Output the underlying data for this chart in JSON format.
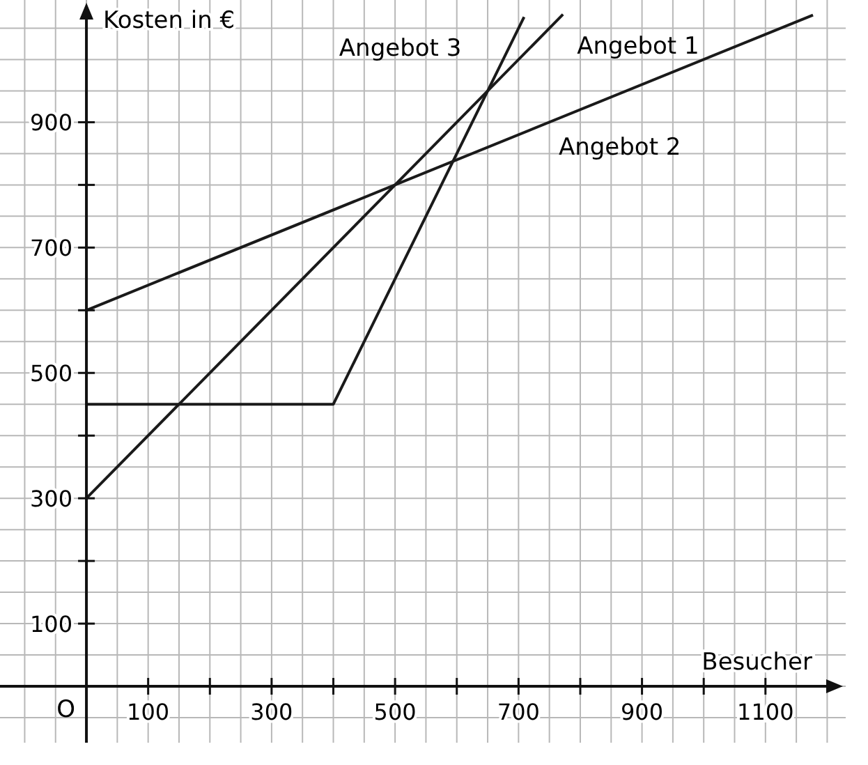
{
  "chart_data": {
    "type": "line",
    "xlabel": "Besucher",
    "ylabel": "Kosten in €",
    "xlim": [
      -140,
      1230
    ],
    "ylim": [
      -90,
      1095
    ],
    "xticks": [
      {
        "value": 100,
        "label": "100"
      },
      {
        "value": 200,
        "label": null
      },
      {
        "value": 300,
        "label": "300"
      },
      {
        "value": 400,
        "label": null
      },
      {
        "value": 500,
        "label": "500"
      },
      {
        "value": 600,
        "label": null
      },
      {
        "value": 700,
        "label": "700"
      },
      {
        "value": 800,
        "label": null
      },
      {
        "value": 900,
        "label": "900"
      },
      {
        "value": 1000,
        "label": null
      },
      {
        "value": 1100,
        "label": "1100"
      }
    ],
    "yticks": [
      {
        "value": 100,
        "label": "100"
      },
      {
        "value": 200,
        "label": null
      },
      {
        "value": 300,
        "label": "300"
      },
      {
        "value": 400,
        "label": null
      },
      {
        "value": 500,
        "label": "500"
      },
      {
        "value": 600,
        "label": null
      },
      {
        "value": 700,
        "label": "700"
      },
      {
        "value": 800,
        "label": null
      },
      {
        "value": 900,
        "label": "900"
      }
    ],
    "grid": true,
    "marker": "none",
    "line_style": "solid",
    "annotations": [
      "O"
    ],
    "series": [
      {
        "name": "Angebot 1",
        "color": "#1a1a1a",
        "x": [
          0,
          772
        ],
        "values": [
          300,
          1072
        ]
      },
      {
        "name": "Angebot 2",
        "color": "#1a1a1a",
        "x": [
          0,
          1177
        ],
        "values": [
          600,
          1071
        ]
      },
      {
        "name": "Angebot 3",
        "color": "#1a1a1a",
        "x": [
          0,
          400,
          709
        ],
        "values": [
          450,
          450,
          1068
        ]
      }
    ]
  }
}
